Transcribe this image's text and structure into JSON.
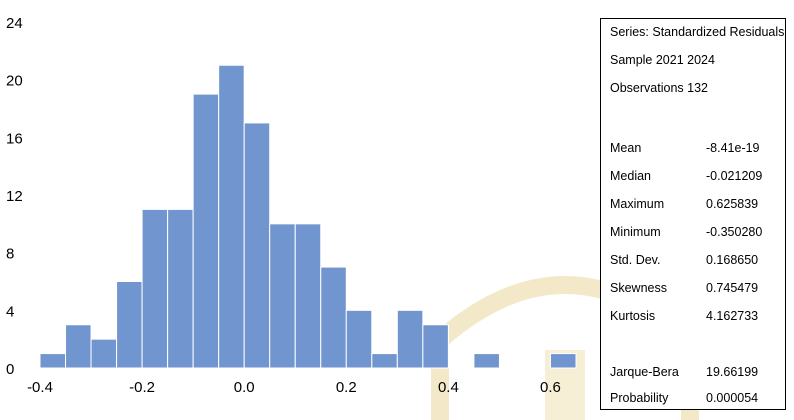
{
  "chart_data": {
    "type": "bar",
    "title": "",
    "xlabel": "",
    "ylabel": "",
    "x_ticks": [
      "-0.4",
      "-0.2",
      "0.0",
      "0.2",
      "0.4",
      "0.6"
    ],
    "y_ticks": [
      "0",
      "4",
      "8",
      "12",
      "16",
      "20",
      "24"
    ],
    "xlim": [
      -0.4,
      0.65
    ],
    "ylim": [
      0,
      24
    ],
    "bin_width": 0.05,
    "bins": [
      {
        "start": -0.4,
        "count": 1
      },
      {
        "start": -0.35,
        "count": 3
      },
      {
        "start": -0.3,
        "count": 2
      },
      {
        "start": -0.25,
        "count": 6
      },
      {
        "start": -0.2,
        "count": 11
      },
      {
        "start": -0.15,
        "count": 11
      },
      {
        "start": -0.1,
        "count": 19
      },
      {
        "start": -0.05,
        "count": 21
      },
      {
        "start": 0.0,
        "count": 17
      },
      {
        "start": 0.05,
        "count": 10
      },
      {
        "start": 0.1,
        "count": 10
      },
      {
        "start": 0.15,
        "count": 7
      },
      {
        "start": 0.2,
        "count": 4
      },
      {
        "start": 0.25,
        "count": 1
      },
      {
        "start": 0.3,
        "count": 4
      },
      {
        "start": 0.35,
        "count": 3
      },
      {
        "start": 0.4,
        "count": 0
      },
      {
        "start": 0.45,
        "count": 1
      },
      {
        "start": 0.5,
        "count": 0
      },
      {
        "start": 0.55,
        "count": 0
      },
      {
        "start": 0.6,
        "count": 1
      }
    ],
    "bar_color": "#7196cf",
    "bar_edge": "#ffffff",
    "grid": false
  },
  "stats": {
    "series": "Series: Standardized Residuals",
    "sample": "Sample 2021 2024",
    "observations": "Observations 132",
    "rows": [
      {
        "label": "Mean",
        "value": "-8.41e-19"
      },
      {
        "label": "Median",
        "value": "-0.021209"
      },
      {
        "label": "Maximum",
        "value": " 0.625839"
      },
      {
        "label": "Minimum",
        "value": "-0.350280"
      },
      {
        "label": "Std. Dev.",
        "value": " 0.168650"
      },
      {
        "label": "Skewness",
        "value": " 0.745479"
      },
      {
        "label": "Kurtosis",
        "value": " 4.162733"
      }
    ],
    "jarque_bera": {
      "label": "Jarque-Bera",
      "value": " 19.66199"
    },
    "probability": {
      "label": "Probability",
      "value": " 0.000054"
    }
  }
}
